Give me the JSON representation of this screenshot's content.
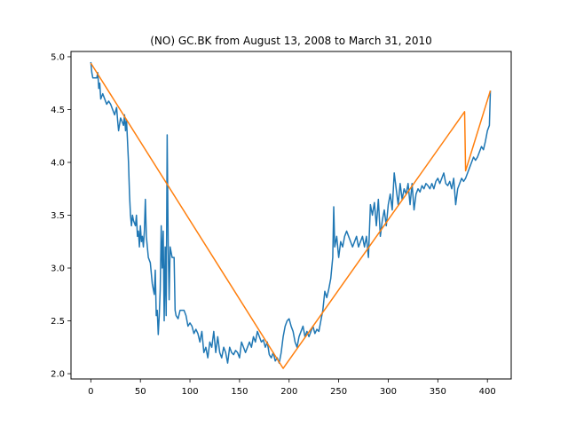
{
  "chart_data": {
    "type": "line",
    "title": "(NO) GC.BK from August 13, 2008 to March 31, 2010",
    "xlabel": "",
    "ylabel": "",
    "xlim": [
      -20,
      424
    ],
    "ylim": [
      1.95,
      5.05
    ],
    "xticks": [
      0,
      50,
      100,
      150,
      200,
      250,
      300,
      350,
      400
    ],
    "yticks": [
      2.0,
      2.5,
      3.0,
      3.5,
      4.0,
      4.5,
      5.0
    ],
    "grid": false,
    "series": [
      {
        "color": "#1f77b4",
        "points": [
          [
            0,
            4.95
          ],
          [
            1,
            4.85
          ],
          [
            2,
            4.8
          ],
          [
            4,
            4.8
          ],
          [
            6,
            4.8
          ],
          [
            7,
            4.85
          ],
          [
            8,
            4.7
          ],
          [
            9,
            4.75
          ],
          [
            10,
            4.6
          ],
          [
            12,
            4.65
          ],
          [
            14,
            4.6
          ],
          [
            16,
            4.55
          ],
          [
            18,
            4.58
          ],
          [
            20,
            4.55
          ],
          [
            22,
            4.5
          ],
          [
            24,
            4.45
          ],
          [
            26,
            4.52
          ],
          [
            27,
            4.4
          ],
          [
            28,
            4.3
          ],
          [
            30,
            4.42
          ],
          [
            31,
            4.4
          ],
          [
            33,
            4.35
          ],
          [
            34,
            4.45
          ],
          [
            35,
            4.3
          ],
          [
            36,
            4.4
          ],
          [
            37,
            4.2
          ],
          [
            38,
            4.0
          ],
          [
            39,
            3.7
          ],
          [
            40,
            3.5
          ],
          [
            41,
            3.4
          ],
          [
            42,
            3.5
          ],
          [
            43,
            3.45
          ],
          [
            45,
            3.4
          ],
          [
            46,
            3.5
          ],
          [
            47,
            3.3
          ],
          [
            48,
            3.35
          ],
          [
            49,
            3.2
          ],
          [
            50,
            3.4
          ],
          [
            51,
            3.25
          ],
          [
            52,
            3.3
          ],
          [
            53,
            3.2
          ],
          [
            54,
            3.35
          ],
          [
            55,
            3.65
          ],
          [
            56,
            3.3
          ],
          [
            57,
            3.2
          ],
          [
            58,
            3.1
          ],
          [
            60,
            3.05
          ],
          [
            62,
            2.85
          ],
          [
            63,
            2.8
          ],
          [
            64,
            2.75
          ],
          [
            65,
            2.98
          ],
          [
            66,
            2.55
          ],
          [
            67,
            2.6
          ],
          [
            68,
            2.37
          ],
          [
            69,
            2.55
          ],
          [
            70,
            2.8
          ],
          [
            71,
            3.4
          ],
          [
            72,
            3.0
          ],
          [
            73,
            3.35
          ],
          [
            74,
            2.5
          ],
          [
            75,
            3.2
          ],
          [
            76,
            2.55
          ],
          [
            77,
            4.26
          ],
          [
            78,
            3.25
          ],
          [
            79,
            2.7
          ],
          [
            80,
            3.2
          ],
          [
            82,
            3.1
          ],
          [
            84,
            3.1
          ],
          [
            85,
            2.6
          ],
          [
            86,
            2.55
          ],
          [
            88,
            2.52
          ],
          [
            90,
            2.6
          ],
          [
            92,
            2.6
          ],
          [
            94,
            2.6
          ],
          [
            96,
            2.55
          ],
          [
            98,
            2.45
          ],
          [
            100,
            2.48
          ],
          [
            102,
            2.45
          ],
          [
            104,
            2.38
          ],
          [
            106,
            2.42
          ],
          [
            108,
            2.38
          ],
          [
            110,
            2.3
          ],
          [
            112,
            2.4
          ],
          [
            114,
            2.2
          ],
          [
            116,
            2.25
          ],
          [
            118,
            2.15
          ],
          [
            120,
            2.3
          ],
          [
            122,
            2.25
          ],
          [
            124,
            2.4
          ],
          [
            126,
            2.2
          ],
          [
            128,
            2.35
          ],
          [
            130,
            2.2
          ],
          [
            132,
            2.15
          ],
          [
            134,
            2.25
          ],
          [
            136,
            2.2
          ],
          [
            138,
            2.1
          ],
          [
            140,
            2.25
          ],
          [
            142,
            2.2
          ],
          [
            144,
            2.18
          ],
          [
            146,
            2.22
          ],
          [
            148,
            2.2
          ],
          [
            150,
            2.15
          ],
          [
            152,
            2.3
          ],
          [
            154,
            2.25
          ],
          [
            156,
            2.2
          ],
          [
            158,
            2.25
          ],
          [
            160,
            2.3
          ],
          [
            162,
            2.25
          ],
          [
            164,
            2.35
          ],
          [
            166,
            2.3
          ],
          [
            168,
            2.4
          ],
          [
            170,
            2.35
          ],
          [
            172,
            2.3
          ],
          [
            174,
            2.32
          ],
          [
            176,
            2.25
          ],
          [
            178,
            2.3
          ],
          [
            180,
            2.18
          ],
          [
            182,
            2.15
          ],
          [
            184,
            2.2
          ],
          [
            186,
            2.12
          ],
          [
            188,
            2.15
          ],
          [
            190,
            2.1
          ],
          [
            192,
            2.2
          ],
          [
            194,
            2.35
          ],
          [
            196,
            2.45
          ],
          [
            198,
            2.5
          ],
          [
            200,
            2.52
          ],
          [
            202,
            2.45
          ],
          [
            204,
            2.4
          ],
          [
            206,
            2.3
          ],
          [
            208,
            2.25
          ],
          [
            210,
            2.35
          ],
          [
            212,
            2.4
          ],
          [
            214,
            2.45
          ],
          [
            216,
            2.35
          ],
          [
            218,
            2.4
          ],
          [
            220,
            2.35
          ],
          [
            222,
            2.4
          ],
          [
            224,
            2.45
          ],
          [
            226,
            2.38
          ],
          [
            228,
            2.42
          ],
          [
            230,
            2.4
          ],
          [
            232,
            2.5
          ],
          [
            234,
            2.6
          ],
          [
            236,
            2.78
          ],
          [
            238,
            2.72
          ],
          [
            240,
            2.8
          ],
          [
            242,
            2.9
          ],
          [
            244,
            3.1
          ],
          [
            245,
            3.58
          ],
          [
            246,
            3.2
          ],
          [
            248,
            3.3
          ],
          [
            250,
            3.1
          ],
          [
            252,
            3.25
          ],
          [
            254,
            3.2
          ],
          [
            256,
            3.3
          ],
          [
            258,
            3.35
          ],
          [
            260,
            3.3
          ],
          [
            262,
            3.25
          ],
          [
            264,
            3.2
          ],
          [
            266,
            3.25
          ],
          [
            268,
            3.3
          ],
          [
            270,
            3.2
          ],
          [
            272,
            3.25
          ],
          [
            274,
            3.3
          ],
          [
            276,
            3.2
          ],
          [
            278,
            3.3
          ],
          [
            280,
            3.1
          ],
          [
            282,
            3.6
          ],
          [
            284,
            3.5
          ],
          [
            286,
            3.62
          ],
          [
            288,
            3.4
          ],
          [
            290,
            3.65
          ],
          [
            292,
            3.3
          ],
          [
            294,
            3.45
          ],
          [
            296,
            3.55
          ],
          [
            298,
            3.4
          ],
          [
            300,
            3.6
          ],
          [
            302,
            3.7
          ],
          [
            304,
            3.55
          ],
          [
            306,
            3.9
          ],
          [
            308,
            3.75
          ],
          [
            310,
            3.6
          ],
          [
            312,
            3.8
          ],
          [
            314,
            3.65
          ],
          [
            316,
            3.75
          ],
          [
            318,
            3.7
          ],
          [
            320,
            3.8
          ],
          [
            322,
            3.6
          ],
          [
            324,
            3.8
          ],
          [
            326,
            3.55
          ],
          [
            328,
            3.7
          ],
          [
            330,
            3.75
          ],
          [
            332,
            3.72
          ],
          [
            334,
            3.78
          ],
          [
            336,
            3.75
          ],
          [
            338,
            3.8
          ],
          [
            340,
            3.78
          ],
          [
            342,
            3.75
          ],
          [
            344,
            3.8
          ],
          [
            346,
            3.75
          ],
          [
            348,
            3.82
          ],
          [
            350,
            3.85
          ],
          [
            352,
            3.8
          ],
          [
            354,
            3.85
          ],
          [
            356,
            3.9
          ],
          [
            358,
            3.8
          ],
          [
            360,
            3.78
          ],
          [
            362,
            3.82
          ],
          [
            364,
            3.75
          ],
          [
            366,
            3.85
          ],
          [
            368,
            3.6
          ],
          [
            370,
            3.75
          ],
          [
            372,
            3.8
          ],
          [
            374,
            3.85
          ],
          [
            376,
            3.82
          ],
          [
            378,
            3.85
          ],
          [
            380,
            3.9
          ],
          [
            382,
            3.95
          ],
          [
            384,
            4.0
          ],
          [
            386,
            4.05
          ],
          [
            388,
            4.02
          ],
          [
            390,
            4.05
          ],
          [
            392,
            4.1
          ],
          [
            394,
            4.15
          ],
          [
            396,
            4.12
          ],
          [
            398,
            4.2
          ],
          [
            400,
            4.3
          ],
          [
            402,
            4.35
          ],
          [
            403,
            4.68
          ]
        ]
      },
      {
        "color": "#ff7f0e",
        "points": [
          [
            0,
            4.94
          ],
          [
            194,
            2.05
          ],
          [
            377,
            4.48
          ],
          [
            378,
            3.92
          ],
          [
            403,
            4.68
          ]
        ]
      }
    ]
  }
}
